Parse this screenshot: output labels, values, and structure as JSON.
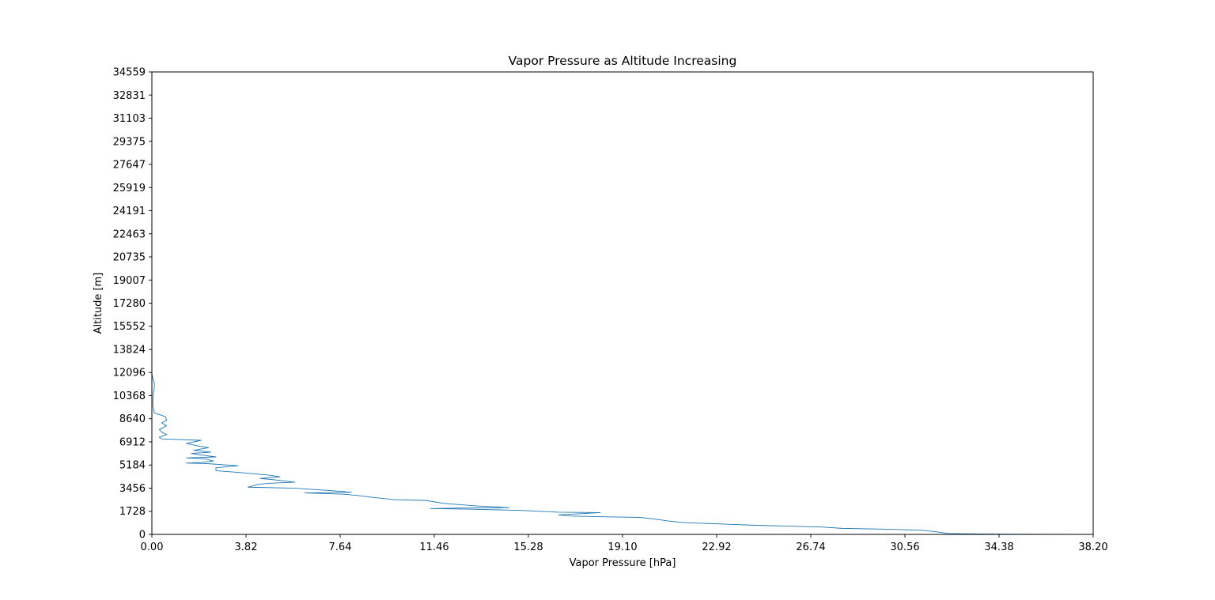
{
  "chart_data": {
    "type": "line",
    "title": "Vapor Pressure as Altitude Increasing",
    "xlabel": "Vapor Pressure [hPa]",
    "ylabel": "Altitude [m]",
    "xlim": [
      0,
      38.2
    ],
    "ylim": [
      0,
      34559
    ],
    "xticks": [
      "0.00",
      "3.82",
      "7.64",
      "11.46",
      "15.28",
      "19.10",
      "22.92",
      "26.74",
      "30.56",
      "34.38",
      "38.20"
    ],
    "xtick_values": [
      0,
      3.82,
      7.64,
      11.46,
      15.28,
      19.1,
      22.92,
      26.74,
      30.56,
      34.38,
      38.2
    ],
    "yticks": [
      "0",
      "1728",
      "3456",
      "5184",
      "6912",
      "8640",
      "10368",
      "12096",
      "13824",
      "15552",
      "17280",
      "19007",
      "20735",
      "22463",
      "24191",
      "25919",
      "27647",
      "29375",
      "31103",
      "32831",
      "34559"
    ],
    "ytick_values": [
      0,
      1728,
      3456,
      5184,
      6912,
      8640,
      10368,
      12096,
      13824,
      15552,
      17280,
      19007,
      20735,
      22463,
      24191,
      25919,
      27647,
      29375,
      31103,
      32831,
      34559
    ],
    "grid": false,
    "series": [
      {
        "color": "#1f77b4",
        "points": [
          [
            38.2,
            0
          ],
          [
            36.0,
            10
          ],
          [
            33.5,
            30
          ],
          [
            32.3,
            60
          ],
          [
            31.8,
            200
          ],
          [
            31.3,
            300
          ],
          [
            30.0,
            380
          ],
          [
            28.0,
            450
          ],
          [
            27.2,
            550
          ],
          [
            26.0,
            610
          ],
          [
            24.5,
            680
          ],
          [
            23.5,
            750
          ],
          [
            22.5,
            820
          ],
          [
            21.6,
            880
          ],
          [
            21.0,
            990
          ],
          [
            20.4,
            1150
          ],
          [
            19.8,
            1270
          ],
          [
            18.5,
            1310
          ],
          [
            17.0,
            1370
          ],
          [
            16.5,
            1460
          ],
          [
            18.2,
            1630
          ],
          [
            16.5,
            1660
          ],
          [
            15.0,
            1790
          ],
          [
            13.0,
            1880
          ],
          [
            11.3,
            1930
          ],
          [
            12.5,
            1970
          ],
          [
            14.5,
            2000
          ],
          [
            13.2,
            2120
          ],
          [
            12.3,
            2250
          ],
          [
            11.8,
            2330
          ],
          [
            11.1,
            2540
          ],
          [
            9.8,
            2600
          ],
          [
            9.0,
            2760
          ],
          [
            8.4,
            2900
          ],
          [
            7.8,
            3000
          ],
          [
            6.2,
            3100
          ],
          [
            8.1,
            3150
          ],
          [
            7.2,
            3280
          ],
          [
            5.8,
            3450
          ],
          [
            3.9,
            3530
          ],
          [
            4.3,
            3740
          ],
          [
            4.8,
            3820
          ],
          [
            5.8,
            3900
          ],
          [
            5.0,
            4070
          ],
          [
            4.4,
            4180
          ],
          [
            5.2,
            4300
          ],
          [
            4.8,
            4420
          ],
          [
            3.6,
            4620
          ],
          [
            2.6,
            4760
          ],
          [
            2.6,
            4980
          ],
          [
            3.5,
            5130
          ],
          [
            2.3,
            5280
          ],
          [
            1.4,
            5330
          ],
          [
            2.0,
            5380
          ],
          [
            2.5,
            5480
          ],
          [
            2.2,
            5630
          ],
          [
            1.4,
            5720
          ],
          [
            2.6,
            5790
          ],
          [
            2.2,
            5880
          ],
          [
            1.6,
            6050
          ],
          [
            2.4,
            6150
          ],
          [
            1.7,
            6280
          ],
          [
            2.3,
            6480
          ],
          [
            1.9,
            6600
          ],
          [
            1.4,
            6800
          ],
          [
            2.0,
            7030
          ],
          [
            0.4,
            7140
          ],
          [
            0.3,
            7260
          ],
          [
            0.6,
            7460
          ],
          [
            0.4,
            7640
          ],
          [
            0.3,
            7830
          ],
          [
            0.6,
            8120
          ],
          [
            0.4,
            8330
          ],
          [
            0.6,
            8520
          ],
          [
            0.55,
            8800
          ],
          [
            0.1,
            9080
          ],
          [
            0.05,
            9500
          ],
          [
            0.04,
            10000
          ],
          [
            0.06,
            10550
          ],
          [
            0.1,
            11000
          ],
          [
            0.1,
            11300
          ],
          [
            0.05,
            11600
          ],
          [
            0.0,
            12000
          ]
        ]
      }
    ]
  }
}
